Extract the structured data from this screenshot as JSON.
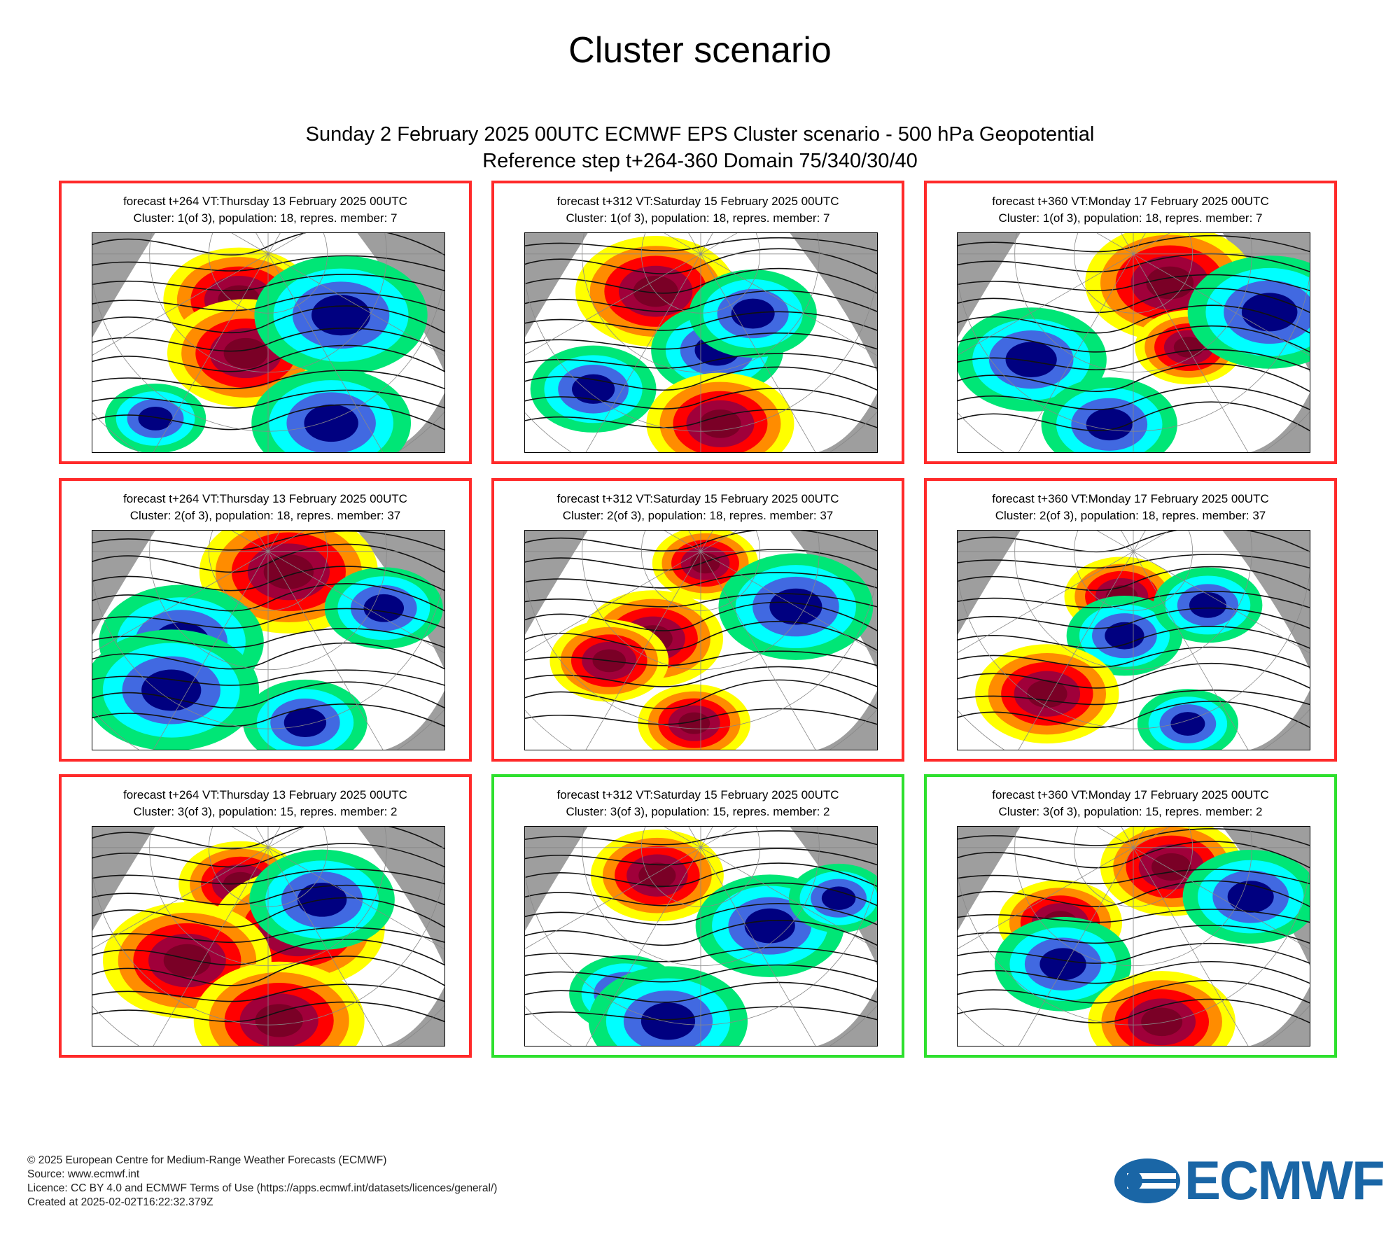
{
  "page_title": "Cluster scenario",
  "subtitle_line1": "Sunday 2 February 2025 00UTC ECMWF EPS Cluster scenario - 500 hPa Geopotential",
  "subtitle_line2": "Reference step t+264-360 Domain 75/340/30/40",
  "colors": {
    "default_border": "#ff2a2a",
    "selected_border": "#2ee02e",
    "logo": "#1a66a6",
    "anomaly_scale": [
      "#000080",
      "#4169e1",
      "#00ffff",
      "#00e676",
      "#ffffff",
      "#ffff00",
      "#ff8c00",
      "#ff0000",
      "#a0003a",
      "#7a0026"
    ]
  },
  "panels": [
    {
      "line1": "forecast t+264 VT:Thursday 13 February 2025 00UTC",
      "line2": "Cluster: 1(of 3), population: 18, repres. member: 7",
      "selected": false
    },
    {
      "line1": "forecast t+312 VT:Saturday 15 February 2025 00UTC",
      "line2": "Cluster: 1(of 3), population: 18, repres. member: 7",
      "selected": false
    },
    {
      "line1": "forecast t+360 VT:Monday 17 February 2025 00UTC",
      "line2": "Cluster: 1(of 3), population: 18, repres. member: 7",
      "selected": false
    },
    {
      "line1": "forecast t+264 VT:Thursday 13 February 2025 00UTC",
      "line2": "Cluster: 2(of 3), population: 18, repres. member: 37",
      "selected": false
    },
    {
      "line1": "forecast t+312 VT:Saturday 15 February 2025 00UTC",
      "line2": "Cluster: 2(of 3), population: 18, repres. member: 37",
      "selected": false
    },
    {
      "line1": "forecast t+360 VT:Monday 17 February 2025 00UTC",
      "line2": "Cluster: 2(of 3), population: 18, repres. member: 37",
      "selected": false
    },
    {
      "line1": "forecast t+264 VT:Thursday 13 February 2025 00UTC",
      "line2": "Cluster: 3(of 3), population: 15, repres. member: 2",
      "selected": false
    },
    {
      "line1": "forecast t+312 VT:Saturday 15 February 2025 00UTC",
      "line2": "Cluster: 3(of 3), population: 15, repres. member: 2",
      "selected": true
    },
    {
      "line1": "forecast t+360 VT:Monday 17 February 2025 00UTC",
      "line2": "Cluster: 3(of 3), population: 15, repres. member: 2",
      "selected": true
    }
  ],
  "footer": {
    "copyright": "© 2025 European Centre for Medium-Range Weather Forecasts (ECMWF)",
    "source": "Source: www.ecmwf.int",
    "licence": "Licence: CC BY 4.0 and ECMWF Terms of Use (https://apps.ecmwf.int/datasets/licences/general/)",
    "created": "Created at 2025-02-02T16:22:32.379Z"
  },
  "logo_text": "ECMWF"
}
